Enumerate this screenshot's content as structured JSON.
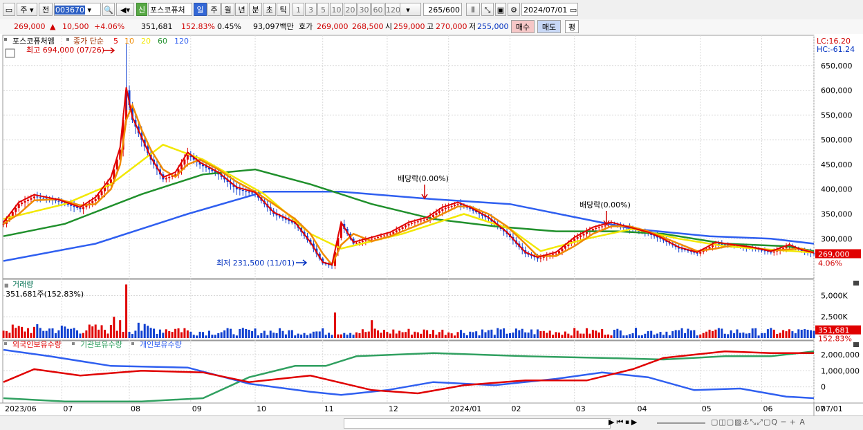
{
  "toolbar": {
    "market": "주",
    "prev_label": "전",
    "code": "003670",
    "credit_badge": "신",
    "stock_name": "포스코퓨처",
    "periods": [
      "일",
      "주",
      "월",
      "년",
      "분",
      "초",
      "틱"
    ],
    "active_period": "일",
    "intervals": [
      "1",
      "3",
      "5",
      "10",
      "20",
      "30",
      "60",
      "120"
    ],
    "count": "265",
    "count_max": "/600",
    "date": "2024/07/01"
  },
  "quote": {
    "price": "269,000",
    "change": "10,500",
    "change_arrow": "▲",
    "change_pct": "+4.06%",
    "volume": "351,681",
    "volume_ratio": "152.83%",
    "turnover": "0.45%",
    "amount": "93,097백만",
    "ask_label": "호가",
    "ask": "269,000",
    "bid": "268,500",
    "open_label": "시",
    "open": "259,000",
    "high_label": "고",
    "high": "270,000",
    "low_label": "저",
    "low": "255,000",
    "buy_btn": "매수",
    "sell_btn": "매도",
    "eval_btn": "평"
  },
  "chart_data": {
    "type": "line",
    "title": "포스코퓨처엠",
    "ma_label": "종가 단순",
    "ma_periods": [
      "5",
      "10",
      "20",
      "60",
      "120"
    ],
    "ma_colors": [
      "#e00000",
      "#f08a00",
      "#f2e800",
      "#20902c",
      "#2f5ff0"
    ],
    "y_range": [
      225000,
      700000
    ],
    "y_ticks": [
      "650,000",
      "600,000",
      "550,000",
      "500,000",
      "450,000",
      "400,000",
      "350,000",
      "300,000"
    ],
    "y_tick_values": [
      650000,
      600000,
      550000,
      500000,
      450000,
      400000,
      350000,
      300000
    ],
    "x_labels": [
      "2023/06",
      "07",
      "08",
      "09",
      "10",
      "11",
      "12",
      "2024/01",
      "02",
      "03",
      "04",
      "05",
      "06",
      "07",
      "07/01"
    ],
    "annotations": {
      "high": "최고 694,000 (07/26)",
      "low": "최저 231,500 (11/01)",
      "div1": "배당락(0.00%)",
      "div2": "배당락(0.00%)"
    },
    "lc": "LC:16.20",
    "hc": "HC:-61.24",
    "last_price": "269,000",
    "last_pct": "4.06%",
    "price_close": [
      {
        "t": 0,
        "v": 330000
      },
      {
        "t": 5,
        "v": 370000
      },
      {
        "t": 10,
        "v": 385000
      },
      {
        "t": 18,
        "v": 375000
      },
      {
        "t": 25,
        "v": 360000
      },
      {
        "t": 30,
        "v": 380000
      },
      {
        "t": 35,
        "v": 420000
      },
      {
        "t": 38,
        "v": 480000
      },
      {
        "t": 40,
        "v": 600000
      },
      {
        "t": 42,
        "v": 540000
      },
      {
        "t": 45,
        "v": 500000
      },
      {
        "t": 48,
        "v": 460000
      },
      {
        "t": 52,
        "v": 420000
      },
      {
        "t": 56,
        "v": 430000
      },
      {
        "t": 60,
        "v": 470000
      },
      {
        "t": 64,
        "v": 450000
      },
      {
        "t": 70,
        "v": 430000
      },
      {
        "t": 76,
        "v": 400000
      },
      {
        "t": 82,
        "v": 390000
      },
      {
        "t": 88,
        "v": 350000
      },
      {
        "t": 95,
        "v": 330000
      },
      {
        "t": 100,
        "v": 290000
      },
      {
        "t": 104,
        "v": 250000
      },
      {
        "t": 107,
        "v": 245000
      },
      {
        "t": 110,
        "v": 330000
      },
      {
        "t": 114,
        "v": 290000
      },
      {
        "t": 120,
        "v": 300000
      },
      {
        "t": 126,
        "v": 310000
      },
      {
        "t": 132,
        "v": 330000
      },
      {
        "t": 138,
        "v": 340000
      },
      {
        "t": 143,
        "v": 360000
      },
      {
        "t": 148,
        "v": 370000
      },
      {
        "t": 152,
        "v": 360000
      },
      {
        "t": 158,
        "v": 340000
      },
      {
        "t": 164,
        "v": 310000
      },
      {
        "t": 170,
        "v": 270000
      },
      {
        "t": 174,
        "v": 260000
      },
      {
        "t": 180,
        "v": 270000
      },
      {
        "t": 186,
        "v": 300000
      },
      {
        "t": 192,
        "v": 320000
      },
      {
        "t": 198,
        "v": 330000
      },
      {
        "t": 204,
        "v": 320000
      },
      {
        "t": 210,
        "v": 310000
      },
      {
        "t": 214,
        "v": 300000
      },
      {
        "t": 220,
        "v": 280000
      },
      {
        "t": 226,
        "v": 270000
      },
      {
        "t": 232,
        "v": 290000
      },
      {
        "t": 238,
        "v": 285000
      },
      {
        "t": 244,
        "v": 280000
      },
      {
        "t": 250,
        "v": 272000
      },
      {
        "t": 256,
        "v": 285000
      },
      {
        "t": 260,
        "v": 275000
      },
      {
        "t": 264,
        "v": 269000
      }
    ],
    "ma20": [
      {
        "t": 0,
        "v": 340000
      },
      {
        "t": 20,
        "v": 370000
      },
      {
        "t": 35,
        "v": 410000
      },
      {
        "t": 52,
        "v": 490000
      },
      {
        "t": 65,
        "v": 460000
      },
      {
        "t": 85,
        "v": 390000
      },
      {
        "t": 100,
        "v": 310000
      },
      {
        "t": 110,
        "v": 280000
      },
      {
        "t": 130,
        "v": 310000
      },
      {
        "t": 150,
        "v": 350000
      },
      {
        "t": 165,
        "v": 320000
      },
      {
        "t": 175,
        "v": 275000
      },
      {
        "t": 190,
        "v": 300000
      },
      {
        "t": 205,
        "v": 320000
      },
      {
        "t": 220,
        "v": 300000
      },
      {
        "t": 235,
        "v": 285000
      },
      {
        "t": 250,
        "v": 278000
      },
      {
        "t": 264,
        "v": 272000
      }
    ],
    "ma60": [
      {
        "t": 0,
        "v": 305000
      },
      {
        "t": 20,
        "v": 330000
      },
      {
        "t": 45,
        "v": 390000
      },
      {
        "t": 65,
        "v": 430000
      },
      {
        "t": 82,
        "v": 440000
      },
      {
        "t": 100,
        "v": 410000
      },
      {
        "t": 120,
        "v": 370000
      },
      {
        "t": 140,
        "v": 340000
      },
      {
        "t": 160,
        "v": 325000
      },
      {
        "t": 180,
        "v": 315000
      },
      {
        "t": 200,
        "v": 315000
      },
      {
        "t": 215,
        "v": 310000
      },
      {
        "t": 235,
        "v": 290000
      },
      {
        "t": 255,
        "v": 285000
      },
      {
        "t": 264,
        "v": 275000
      }
    ],
    "ma120": [
      {
        "t": 0,
        "v": 255000
      },
      {
        "t": 30,
        "v": 290000
      },
      {
        "t": 60,
        "v": 350000
      },
      {
        "t": 85,
        "v": 395000
      },
      {
        "t": 110,
        "v": 395000
      },
      {
        "t": 140,
        "v": 380000
      },
      {
        "t": 165,
        "v": 370000
      },
      {
        "t": 185,
        "v": 345000
      },
      {
        "t": 205,
        "v": 320000
      },
      {
        "t": 230,
        "v": 305000
      },
      {
        "t": 250,
        "v": 300000
      },
      {
        "t": 264,
        "v": 290000
      }
    ],
    "volume": {
      "title": "거래량",
      "current": "351,681주(152.83%)",
      "y_ticks": [
        "5,000K",
        "2,500K"
      ],
      "y_tick_values": [
        5000000,
        2500000
      ],
      "y_max": 6500000,
      "last_value": "351,681",
      "last_pct": "152.83%",
      "spikes": [
        {
          "t": 40,
          "v": 6300000
        },
        {
          "t": 108,
          "v": 3000000
        },
        {
          "t": 120,
          "v": 2100000
        },
        {
          "t": 36,
          "v": 2500000
        },
        {
          "t": 38,
          "v": 2100000
        },
        {
          "t": 44,
          "v": 1800000
        }
      ]
    },
    "holdings": {
      "legend": [
        "외국인보유수량",
        "기관보유수량",
        "개인보유수량"
      ],
      "colors": [
        "#e00000",
        "#30a060",
        "#2f5ff0"
      ],
      "y_ticks": [
        "2,000,000",
        "1,000,000",
        "0"
      ],
      "y_tick_values": [
        2000000,
        1000000,
        0
      ],
      "foreigner": [
        {
          "t": 0,
          "v": 300000
        },
        {
          "t": 10,
          "v": 1100000
        },
        {
          "t": 25,
          "v": 700000
        },
        {
          "t": 45,
          "v": 1000000
        },
        {
          "t": 65,
          "v": 900000
        },
        {
          "t": 80,
          "v": 300000
        },
        {
          "t": 100,
          "v": 700000
        },
        {
          "t": 120,
          "v": -200000
        },
        {
          "t": 135,
          "v": -400000
        },
        {
          "t": 150,
          "v": 100000
        },
        {
          "t": 170,
          "v": 400000
        },
        {
          "t": 190,
          "v": 400000
        },
        {
          "t": 205,
          "v": 1100000
        },
        {
          "t": 215,
          "v": 1800000
        },
        {
          "t": 235,
          "v": 2200000
        },
        {
          "t": 250,
          "v": 2100000
        },
        {
          "t": 264,
          "v": 2100000
        }
      ],
      "institution": [
        {
          "t": 0,
          "v": -700000
        },
        {
          "t": 20,
          "v": -900000
        },
        {
          "t": 45,
          "v": -900000
        },
        {
          "t": 65,
          "v": -700000
        },
        {
          "t": 80,
          "v": 600000
        },
        {
          "t": 95,
          "v": 1300000
        },
        {
          "t": 105,
          "v": 1300000
        },
        {
          "t": 115,
          "v": 1900000
        },
        {
          "t": 140,
          "v": 2100000
        },
        {
          "t": 170,
          "v": 1900000
        },
        {
          "t": 195,
          "v": 1800000
        },
        {
          "t": 215,
          "v": 1700000
        },
        {
          "t": 235,
          "v": 1900000
        },
        {
          "t": 250,
          "v": 1900000
        },
        {
          "t": 264,
          "v": 2200000
        }
      ],
      "individual": [
        {
          "t": 0,
          "v": 2300000
        },
        {
          "t": 15,
          "v": 1900000
        },
        {
          "t": 35,
          "v": 1300000
        },
        {
          "t": 60,
          "v": 1200000
        },
        {
          "t": 80,
          "v": 200000
        },
        {
          "t": 100,
          "v": -300000
        },
        {
          "t": 110,
          "v": -500000
        },
        {
          "t": 125,
          "v": -200000
        },
        {
          "t": 140,
          "v": 300000
        },
        {
          "t": 160,
          "v": 100000
        },
        {
          "t": 180,
          "v": 500000
        },
        {
          "t": 195,
          "v": 900000
        },
        {
          "t": 210,
          "v": 600000
        },
        {
          "t": 225,
          "v": -200000
        },
        {
          "t": 240,
          "v": -100000
        },
        {
          "t": 255,
          "v": -600000
        },
        {
          "t": 264,
          "v": -700000
        }
      ]
    }
  }
}
